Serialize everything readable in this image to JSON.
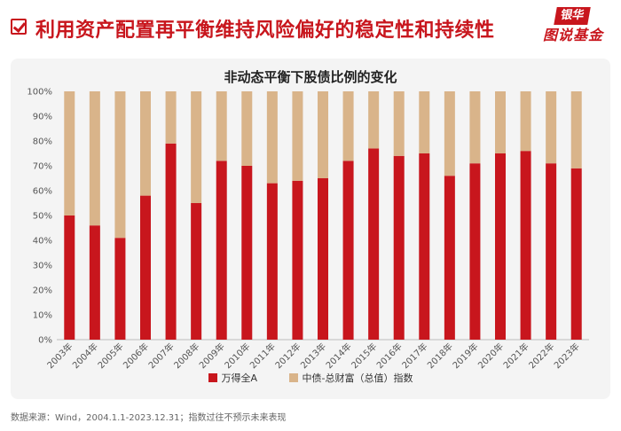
{
  "header": {
    "title": "利用资产配置再平衡维持风险偏好的稳定性和持续性",
    "logo_top": "银华",
    "logo_bottom": "图说基金"
  },
  "colors": {
    "series1": "#c8161d",
    "series2": "#d9b48a",
    "accent": "#c8161d"
  },
  "chart_data": {
    "type": "bar",
    "stacked": true,
    "title": "非动态平衡下股债比例的变化",
    "categories": [
      "2003年",
      "2004年",
      "2005年",
      "2006年",
      "2007年",
      "2008年",
      "2009年",
      "2010年",
      "2011年",
      "2012年",
      "2013年",
      "2014年",
      "2015年",
      "2016年",
      "2017年",
      "2018年",
      "2019年",
      "2020年",
      "2021年",
      "2022年",
      "2023年"
    ],
    "series": [
      {
        "name": "万得全A",
        "values": [
          50,
          46,
          41,
          58,
          79,
          55,
          72,
          70,
          63,
          64,
          65,
          72,
          77,
          74,
          75,
          66,
          71,
          75,
          76,
          71,
          69
        ]
      },
      {
        "name": "中债-总财富（总值）指数",
        "values": [
          50,
          54,
          59,
          42,
          21,
          45,
          28,
          30,
          37,
          36,
          35,
          28,
          23,
          26,
          25,
          34,
          29,
          25,
          24,
          29,
          31
        ]
      }
    ],
    "ylim": [
      0,
      100
    ],
    "yticks": [
      "0%",
      "10%",
      "20%",
      "30%",
      "40%",
      "50%",
      "60%",
      "70%",
      "80%",
      "90%",
      "100%"
    ],
    "legend_position": "bottom"
  },
  "source": "数据来源：Wind，2004.1.1-2023.12.31；指数过往不预示未来表现"
}
